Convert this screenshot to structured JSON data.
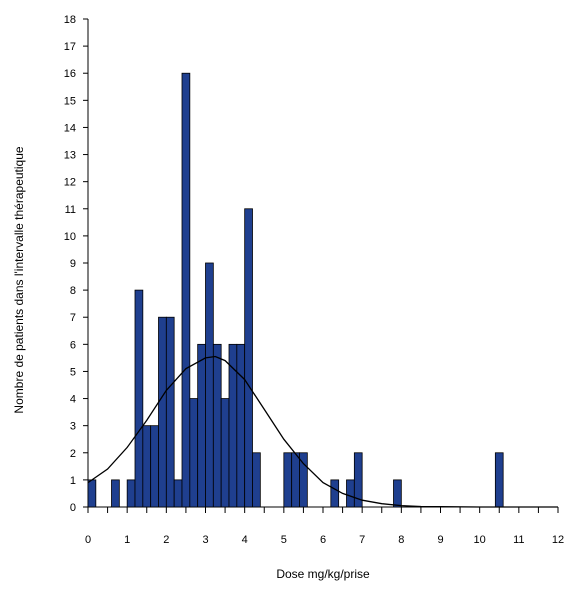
{
  "chart_data": {
    "type": "bar",
    "title": "",
    "xlabel": "Dose mg/kg/prise",
    "ylabel": "Nombre de patients dans l'intervalle thérapeutique",
    "xlim": [
      0,
      12
    ],
    "ylim": [
      0,
      18
    ],
    "x_ticks": [
      "0",
      "1",
      "2",
      "3",
      "4",
      "5",
      "6",
      "7",
      "8",
      "9",
      "10",
      "11",
      "12"
    ],
    "y_ticks": [
      "0",
      "1",
      "2",
      "3",
      "4",
      "5",
      "6",
      "7",
      "8",
      "9",
      "10",
      "11",
      "12",
      "13",
      "14",
      "15",
      "16",
      "17",
      "18"
    ],
    "bar_color": "#1f3f8f",
    "bin_width": 0.2,
    "series": [
      {
        "values": [
          {
            "x": 0.1,
            "y": 1
          },
          {
            "x": 0.7,
            "y": 1
          },
          {
            "x": 1.1,
            "y": 1
          },
          {
            "x": 1.3,
            "y": 8
          },
          {
            "x": 1.5,
            "y": 3
          },
          {
            "x": 1.7,
            "y": 3
          },
          {
            "x": 1.9,
            "y": 7
          },
          {
            "x": 2.1,
            "y": 7
          },
          {
            "x": 2.3,
            "y": 1
          },
          {
            "x": 2.5,
            "y": 16
          },
          {
            "x": 2.7,
            "y": 4
          },
          {
            "x": 2.9,
            "y": 6
          },
          {
            "x": 3.1,
            "y": 9
          },
          {
            "x": 3.3,
            "y": 6
          },
          {
            "x": 3.5,
            "y": 4
          },
          {
            "x": 3.7,
            "y": 6
          },
          {
            "x": 3.9,
            "y": 6
          },
          {
            "x": 4.1,
            "y": 11
          },
          {
            "x": 4.3,
            "y": 2
          },
          {
            "x": 5.1,
            "y": 2
          },
          {
            "x": 5.3,
            "y": 2
          },
          {
            "x": 5.5,
            "y": 2
          },
          {
            "x": 6.3,
            "y": 1
          },
          {
            "x": 6.7,
            "y": 1
          },
          {
            "x": 6.9,
            "y": 2
          },
          {
            "x": 7.9,
            "y": 1
          },
          {
            "x": 10.5,
            "y": 2
          }
        ]
      }
    ],
    "curve": {
      "x": [
        0,
        0.5,
        1,
        1.5,
        2,
        2.5,
        3,
        3.25,
        3.5,
        4,
        4.5,
        5,
        5.5,
        6,
        6.5,
        7,
        7.5,
        8,
        8.5,
        9,
        10,
        11,
        12
      ],
      "y": [
        0.9,
        1.4,
        2.2,
        3.2,
        4.3,
        5.1,
        5.5,
        5.55,
        5.4,
        4.7,
        3.6,
        2.5,
        1.6,
        0.9,
        0.5,
        0.25,
        0.12,
        0.05,
        0.02,
        0.01,
        0,
        0,
        0
      ]
    }
  }
}
